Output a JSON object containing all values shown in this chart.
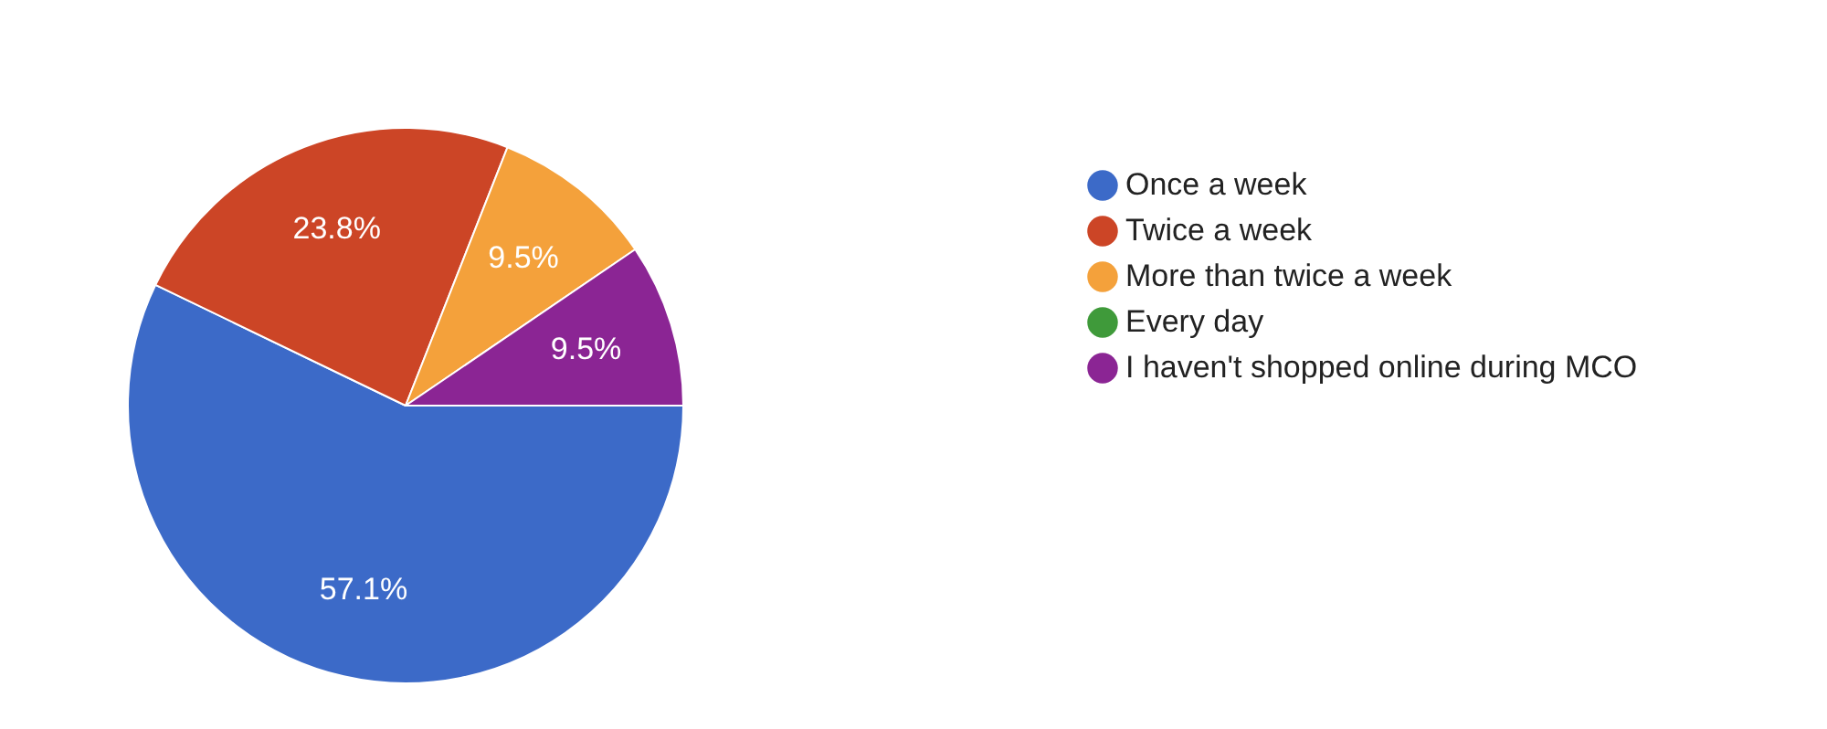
{
  "chart_data": {
    "type": "pie",
    "categories": [
      "Once a week",
      "Twice a week",
      "More than twice a week",
      "Every day",
      "I haven't shopped online during MCO"
    ],
    "values": [
      57.1,
      23.8,
      9.5,
      0,
      9.5
    ],
    "colors": [
      "#3c6ac8",
      "#cc4526",
      "#f4a13b",
      "#3f9a3a",
      "#8b2594"
    ],
    "value_labels": [
      "57.1%",
      "23.8%",
      "9.5%",
      null,
      "9.5%"
    ],
    "legend": "right"
  }
}
